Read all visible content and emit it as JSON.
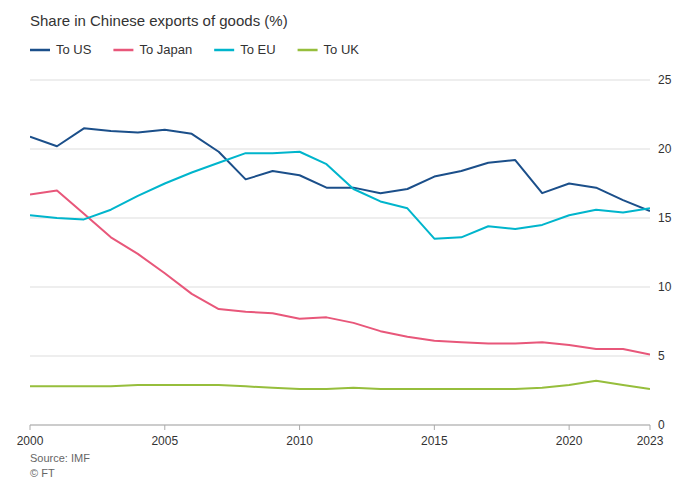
{
  "chart_data": {
    "type": "line",
    "title": "Share in Chinese exports of goods (%)",
    "annotations": [
      "Source: IMF\n© FT"
    ],
    "x": [
      2000,
      2001,
      2002,
      2003,
      2004,
      2005,
      2006,
      2007,
      2008,
      2009,
      2010,
      2011,
      2012,
      2013,
      2014,
      2015,
      2016,
      2017,
      2018,
      2019,
      2020,
      2021,
      2022,
      2023
    ],
    "series": [
      {
        "name": "To US",
        "color": "#1b4f8a",
        "values": [
          20.9,
          20.2,
          21.5,
          21.3,
          21.2,
          21.4,
          21.1,
          19.8,
          17.8,
          18.4,
          18.1,
          17.2,
          17.2,
          16.8,
          17.1,
          18.0,
          18.4,
          19.0,
          19.2,
          16.8,
          17.5,
          17.2,
          16.3,
          15.5
        ]
      },
      {
        "name": "To Japan",
        "color": "#e8577a",
        "values": [
          16.7,
          17.0,
          15.3,
          13.6,
          12.4,
          11.0,
          9.5,
          8.4,
          8.2,
          8.1,
          7.7,
          7.8,
          7.4,
          6.8,
          6.4,
          6.1,
          6.0,
          5.9,
          5.9,
          6.0,
          5.8,
          5.5,
          5.5,
          5.1
        ]
      },
      {
        "name": "To EU",
        "color": "#00b5cc",
        "values": [
          15.2,
          15.0,
          14.9,
          15.6,
          16.6,
          17.5,
          18.3,
          19.0,
          19.7,
          19.7,
          19.8,
          18.9,
          17.1,
          16.2,
          15.7,
          13.5,
          13.6,
          14.4,
          14.2,
          14.5,
          15.2,
          15.6,
          15.4,
          15.7
        ]
      },
      {
        "name": "To UK",
        "color": "#96be3c",
        "values": [
          2.8,
          2.8,
          2.8,
          2.8,
          2.9,
          2.9,
          2.9,
          2.9,
          2.8,
          2.7,
          2.6,
          2.6,
          2.7,
          2.6,
          2.6,
          2.6,
          2.6,
          2.6,
          2.6,
          2.7,
          2.9,
          3.2,
          2.9,
          2.6
        ]
      }
    ],
    "xlim": [
      2000,
      2023
    ],
    "xticks": [
      2000,
      2005,
      2010,
      2015,
      2020,
      2023
    ],
    "ylim": [
      0,
      25
    ],
    "yticks": [
      0,
      5,
      10,
      15,
      20,
      25
    ],
    "grid": true,
    "legend": "top-left"
  }
}
